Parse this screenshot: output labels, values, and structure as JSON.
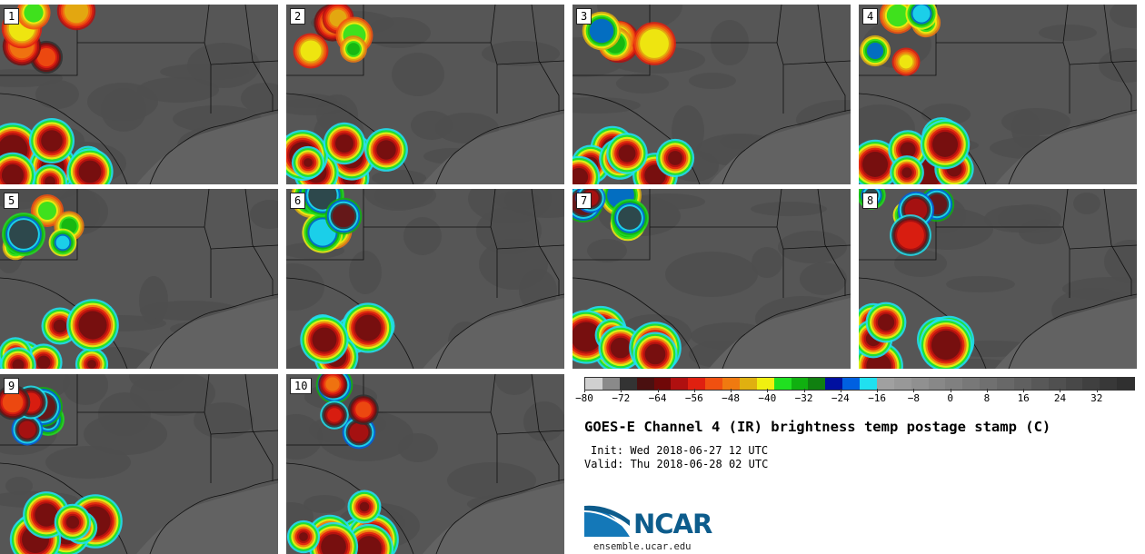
{
  "panels": [
    {
      "label": "1"
    },
    {
      "label": "2"
    },
    {
      "label": "3"
    },
    {
      "label": "4"
    },
    {
      "label": "5"
    },
    {
      "label": "6"
    },
    {
      "label": "7"
    },
    {
      "label": "8"
    },
    {
      "label": "9"
    },
    {
      "label": "10"
    }
  ],
  "colorbar": {
    "ticks": [
      "−80",
      "−72",
      "−64",
      "−56",
      "−48",
      "−40",
      "−32",
      "−24",
      "−16",
      "−8",
      "0",
      "8",
      "16",
      "24",
      "32"
    ],
    "colors": [
      "#d0d0d0",
      "#8a8a8a",
      "#333333",
      "#4a1010",
      "#700808",
      "#b01010",
      "#e02010",
      "#f05010",
      "#f07a10",
      "#e0b010",
      "#f0f010",
      "#20e020",
      "#10b010",
      "#108010",
      "#0010a0",
      "#0060e0",
      "#20e0f0",
      "#a0a0a0",
      "#989898",
      "#909090",
      "#888888",
      "#808080",
      "#787878",
      "#707070",
      "#686868",
      "#606060",
      "#585858",
      "#505050",
      "#484848",
      "#404040",
      "#383838",
      "#303030"
    ],
    "min": -80,
    "max": 40
  },
  "title": "GOES-E Channel 4 (IR) brightness temp postage stamp (C)",
  "init": "Init: Wed 2018-06-27 12 UTC",
  "valid": "Valid: Thu 2018-06-28 02 UTC",
  "logo": {
    "text": "NCAR",
    "url": "ensemble.ucar.edu",
    "color": "#0d5c8c"
  }
}
